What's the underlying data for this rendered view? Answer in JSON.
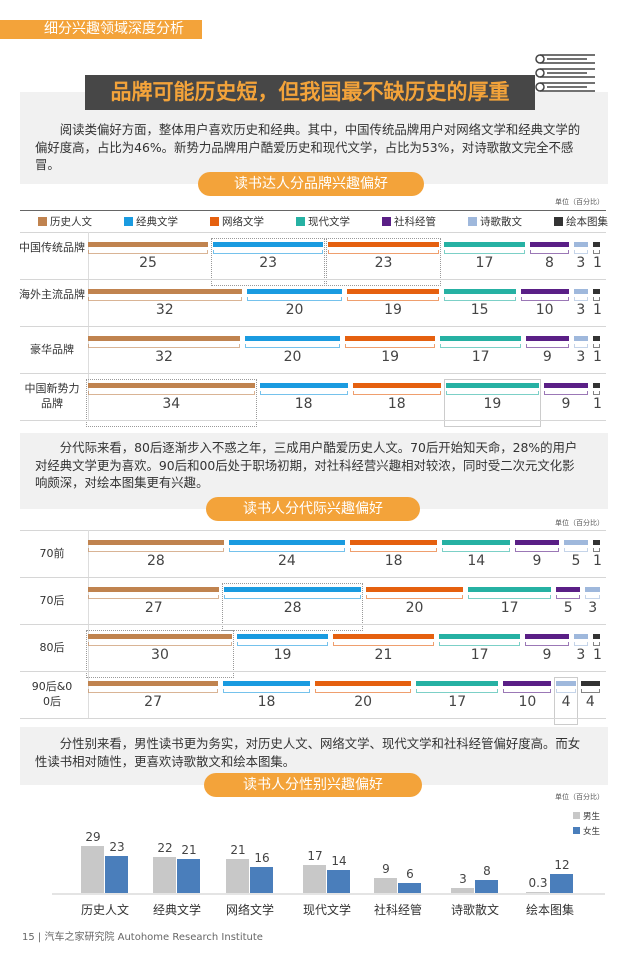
{
  "section_tag": "细分兴趣领域深度分析",
  "headline": "品牌可能历史短，但我国最不缺历史的厚重",
  "para1": "阅读类偏好方面，整体用户喜欢历史和经典。其中，中国传统品牌用户对网络文学和经典文学的偏好度高，占比为46%。新势力品牌用户酷爱历史和现代文学，占比为53%，对诗歌散文完全不感冒。",
  "para2": "分代际来看，80后逐渐步入不惑之年，三成用户酷爱历史人文。70后开始知天命，28%的用户对经典文学更为喜欢。90后和00后处于职场初期，对社科经营兴趣相对较浓，同时受二次元文化影响颇深，对绘本图集更有兴趣。",
  "para3": "分性别来看，男性读书更为务实，对历史人文、网络文学、现代文学和社科经管偏好度高。而女性读书相对随性，更喜欢诗歌散文和绘本图集。",
  "footer": "15 | 汽车之家研究院  Autohome Research Institute",
  "chart_data": [
    {
      "type": "bar",
      "title": "读书达人分品牌兴趣偏好",
      "unit": "单位（百分比）",
      "legend_position": "top",
      "series_names": [
        "历史人文",
        "经典文学",
        "网络文学",
        "现代文学",
        "社科经管",
        "诗歌散文",
        "绘本图集"
      ],
      "colors": [
        "#c0834f",
        "#1a9be0",
        "#e5600f",
        "#26b1a3",
        "#5a1f86",
        "#9fb8dc",
        "#333333"
      ],
      "categories": [
        "中国传统品牌",
        "海外主流品牌",
        "豪华品牌",
        "中国新势力品牌"
      ],
      "rows": [
        [
          25,
          23,
          23,
          17,
          8,
          3,
          1
        ],
        [
          32,
          20,
          19,
          15,
          10,
          3,
          1
        ],
        [
          32,
          20,
          19,
          17,
          9,
          3,
          1
        ],
        [
          34,
          18,
          18,
          19,
          9,
          0,
          1
        ]
      ],
      "highlight": [
        {
          "row": 0,
          "cols": [
            1,
            2
          ],
          "style": "dotted"
        },
        {
          "row": 3,
          "cols": [
            0
          ],
          "style": "dotted"
        },
        {
          "row": 3,
          "cols": [
            3
          ],
          "style": "solid"
        }
      ]
    },
    {
      "type": "bar",
      "title": "读书人分代际兴趣偏好",
      "unit": "单位（百分比）",
      "categories": [
        "70前",
        "70后",
        "80后",
        "90后&00后"
      ],
      "rows": [
        [
          28,
          24,
          18,
          14,
          9,
          5,
          1
        ],
        [
          27,
          28,
          20,
          17,
          5,
          3,
          0
        ],
        [
          30,
          19,
          21,
          17,
          9,
          3,
          1
        ],
        [
          27,
          18,
          20,
          17,
          10,
          4,
          4
        ]
      ],
      "highlight": [
        {
          "row": 1,
          "cols": [
            1
          ],
          "style": "dotted"
        },
        {
          "row": 2,
          "cols": [
            0
          ],
          "style": "dotted"
        },
        {
          "row": 3,
          "cols": [
            5
          ],
          "style": "solid"
        }
      ]
    },
    {
      "type": "bar",
      "title": "读书人分性别兴趣偏好",
      "unit": "单位（百分比）",
      "legend_position": "top-right",
      "categories": [
        "历史人文",
        "经典文学",
        "网络文学",
        "现代文学",
        "社科经管",
        "诗歌散文",
        "绘本图集"
      ],
      "series": [
        {
          "name": "男生",
          "color": "#c8c8c8",
          "values": [
            29,
            22,
            21,
            17,
            9,
            3,
            0.3
          ]
        },
        {
          "name": "女生",
          "color": "#4a7ebb",
          "values": [
            23,
            21,
            16,
            14,
            6,
            8,
            12
          ]
        }
      ]
    }
  ]
}
